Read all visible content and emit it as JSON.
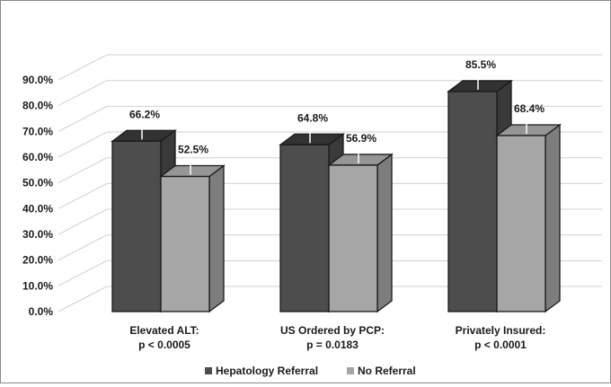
{
  "chart_data": {
    "type": "bar",
    "style": "3d-clustered-column",
    "title": "",
    "xlabel": "",
    "ylabel": "",
    "ylim": [
      0,
      90
    ],
    "y_ticks": [
      "0.0%",
      "10.0%",
      "20.0%",
      "30.0%",
      "40.0%",
      "50.0%",
      "60.0%",
      "70.0%",
      "80.0%",
      "90.0%"
    ],
    "y_unit": "%",
    "grid": true,
    "legend_position": "bottom",
    "categories": [
      {
        "line1": "Elevated ALT:",
        "line2": "p < 0.0005"
      },
      {
        "line1": "US Ordered by PCP:",
        "line2": "p = 0.0183"
      },
      {
        "line1": "Privately Insured:",
        "line2": "p < 0.0001"
      }
    ],
    "series": [
      {
        "name": "Hepatology Referral",
        "values": [
          66.2,
          64.8,
          85.5
        ],
        "labels": [
          "66.2%",
          "64.8%",
          "85.5%"
        ],
        "color": "#4d4d4d"
      },
      {
        "name": "No Referral",
        "values": [
          52.5,
          56.9,
          68.4
        ],
        "labels": [
          "52.5%",
          "56.9%",
          "68.4%"
        ],
        "color": "#a6a6a6"
      }
    ]
  }
}
